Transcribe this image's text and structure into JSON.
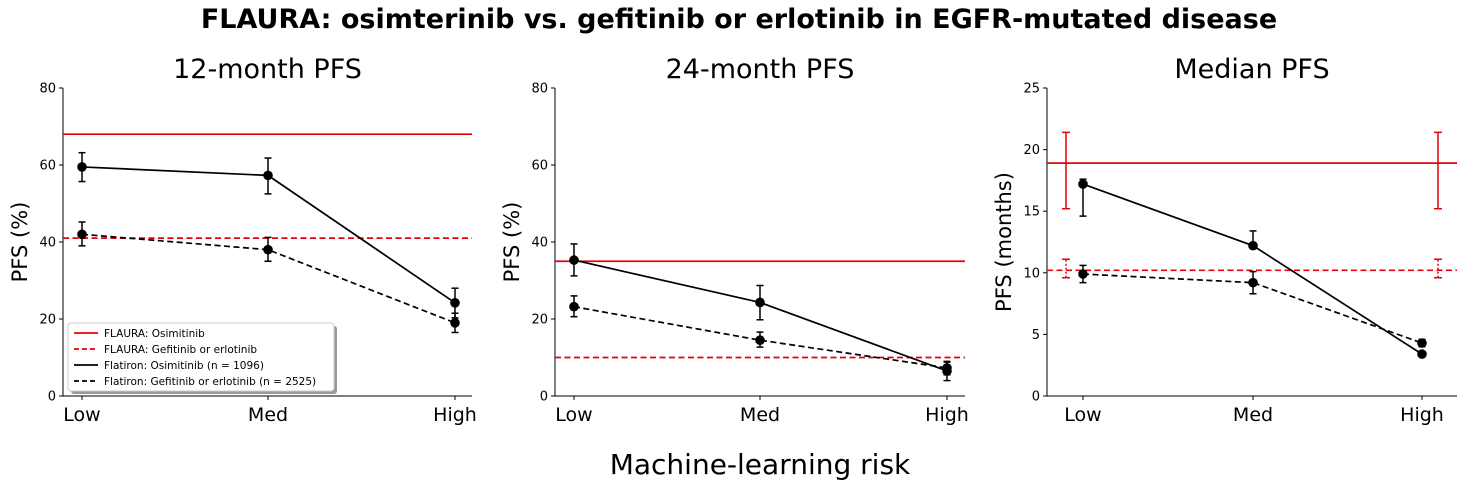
{
  "suptitle": "FLAURA: osimterinib vs. gefitinib or erlotinib in EGFR-mutated disease",
  "supxlabel": "Machine-learning risk",
  "colors": {
    "flaura": "#e8000b",
    "flatiron": "#000000"
  },
  "legend": {
    "placement": "lower left",
    "entries": [
      {
        "label": "FLAURA: Osimitinib",
        "color": "#e8000b",
        "style": "solid"
      },
      {
        "label": "FLAURA: Gefitinib or erlotinib",
        "color": "#e8000b",
        "style": "dashed"
      },
      {
        "label": "Flatiron: Osimitinib (n = 1096)",
        "color": "#000000",
        "style": "solid"
      },
      {
        "label": "Flatiron: Gefitinib or erlotinib (n = 2525)",
        "color": "#000000",
        "style": "dashed"
      }
    ]
  },
  "chart_data": [
    {
      "type": "line",
      "title": "12-month PFS",
      "ylabel": "PFS (%)",
      "categories": [
        "Low",
        "Med",
        "High"
      ],
      "ylim": [
        0,
        80
      ],
      "yticks": [
        0,
        20,
        40,
        60,
        80
      ],
      "reference_lines": [
        {
          "name": "FLAURA: Osimitinib",
          "y": 68,
          "style": "solid"
        },
        {
          "name": "FLAURA: Gefitinib or erlotinib",
          "y": 41,
          "style": "dashed"
        }
      ],
      "series": [
        {
          "name": "Flatiron: Osimitinib (n = 1096)",
          "style": "solid",
          "values": [
            59.5,
            57.3,
            24.2
          ],
          "lower": [
            55.7,
            52.5,
            20.3
          ],
          "upper": [
            63.2,
            61.8,
            28.0
          ]
        },
        {
          "name": "Flatiron: Gefitinib or erlotinib (n = 2525)",
          "style": "dashed",
          "values": [
            42.0,
            38.0,
            19.0
          ],
          "lower": [
            39.0,
            35.0,
            16.5
          ],
          "upper": [
            45.2,
            41.2,
            21.5
          ]
        }
      ]
    },
    {
      "type": "line",
      "title": "24-month PFS",
      "ylabel": "PFS (%)",
      "categories": [
        "Low",
        "Med",
        "High"
      ],
      "ylim": [
        0,
        80
      ],
      "yticks": [
        0,
        20,
        40,
        60,
        80
      ],
      "reference_lines": [
        {
          "name": "FLAURA: Osimitinib",
          "y": 35,
          "style": "solid"
        },
        {
          "name": "FLAURA: Gefitinib or erlotinib",
          "y": 10,
          "style": "dashed"
        }
      ],
      "series": [
        {
          "name": "Flatiron: Osimitinib (n = 1096)",
          "style": "solid",
          "values": [
            35.3,
            24.3,
            6.5
          ],
          "lower": [
            31.2,
            19.8,
            4.0
          ],
          "upper": [
            39.5,
            28.7,
            9.0
          ]
        },
        {
          "name": "Flatiron: Gefitinib or erlotinib (n = 2525)",
          "style": "dashed",
          "values": [
            23.2,
            14.5,
            7.3
          ],
          "lower": [
            20.6,
            12.7,
            5.5
          ],
          "upper": [
            26.0,
            16.6,
            8.8
          ]
        }
      ]
    },
    {
      "type": "line",
      "title": "Median PFS",
      "ylabel": "PFS (months)",
      "categories": [
        "Low",
        "Med",
        "High"
      ],
      "ylim": [
        0,
        25
      ],
      "yticks": [
        0,
        5,
        10,
        15,
        20,
        25
      ],
      "reference_lines": [
        {
          "name": "FLAURA: Osimitinib",
          "y": 18.9,
          "style": "solid",
          "ci": [
            15.2,
            21.4
          ]
        },
        {
          "name": "FLAURA: Gefitinib or erlotinib",
          "y": 10.2,
          "style": "dashed",
          "ci": [
            9.6,
            11.1
          ]
        }
      ],
      "series": [
        {
          "name": "Flatiron: Osimitinib (n = 1096)",
          "style": "solid",
          "values": [
            17.2,
            12.2,
            3.4
          ],
          "lower": [
            14.6,
            12.0,
            3.3
          ],
          "upper": [
            17.6,
            13.4,
            3.5
          ]
        },
        {
          "name": "Flatiron: Gefitinib or erlotinib (n = 2525)",
          "style": "dashed",
          "values": [
            9.9,
            9.2,
            4.3
          ],
          "lower": [
            9.2,
            8.3,
            4.0
          ],
          "upper": [
            10.6,
            10.1,
            4.6
          ]
        }
      ]
    }
  ]
}
